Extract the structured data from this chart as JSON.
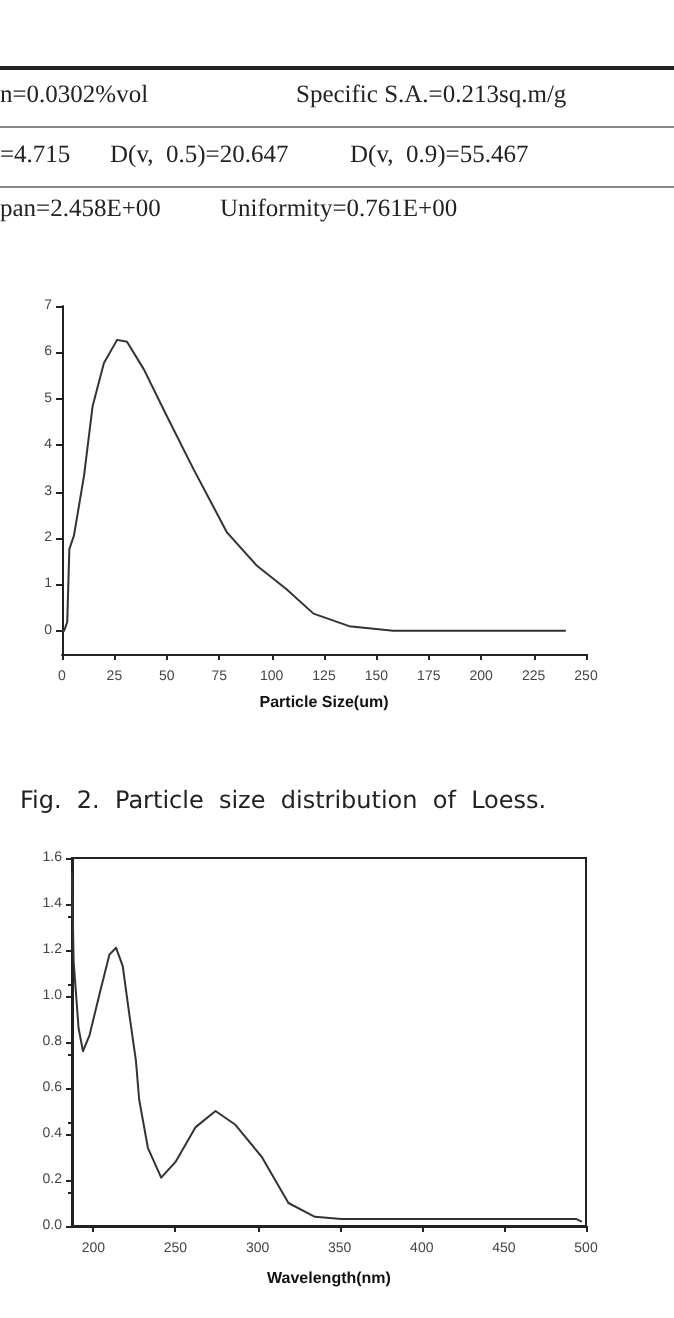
{
  "chart_data": [
    {
      "type": "line",
      "xlabel": "Particle Size(um)",
      "annotations": [
        "n=0.0302%vol",
        "Specific S.A.=0.213sq.m/g",
        "=4.715",
        "D(v,  0.5)=20.647",
        "D(v,  0.9)=55.467",
        "pan=2.458E+00",
        "Uniformity=0.761E+00",
        "Fig.  2.  Particle  size  distribution  of  Loess."
      ],
      "x": [
        0,
        1,
        2.5,
        3.5,
        5.7,
        10.5,
        14.6,
        20,
        26.3,
        31,
        39,
        50,
        62.8,
        78.7,
        93,
        107,
        120,
        137,
        158,
        240
      ],
      "series": [
        {
          "color": "#333333",
          "values": [
            0,
            0,
            0.19,
            1.76,
            2.05,
            3.34,
            4.84,
            5.77,
            6.27,
            6.23,
            5.64,
            4.63,
            3.48,
            2.12,
            1.4,
            0.9,
            0.37,
            0.1,
            0,
            0
          ]
        }
      ],
      "xlim": [
        0,
        250
      ],
      "ylim": [
        -0.5,
        7
      ],
      "xticks": [
        0,
        25,
        50,
        75,
        100,
        125,
        150,
        175,
        200,
        225,
        250
      ],
      "yticks": [
        0,
        1,
        2,
        3,
        4,
        5,
        6,
        7
      ],
      "grid": false,
      "marker": "none"
    },
    {
      "type": "line",
      "xlabel": "Wavelength(nm)",
      "x": [
        187,
        188,
        191,
        193.7,
        197.7,
        203.8,
        209.8,
        213.8,
        217.9,
        221.9,
        225.9,
        227.9,
        233.2,
        241.3,
        250.2,
        262.3,
        274.4,
        286.5,
        302.6,
        318.8,
        334.9,
        351,
        494.2,
        497
      ],
      "series": [
        {
          "color": "#333333",
          "values": [
            1.53,
            1.15,
            0.86,
            0.76,
            0.83,
            1.01,
            1.18,
            1.21,
            1.13,
            0.92,
            0.72,
            0.55,
            0.34,
            0.21,
            0.28,
            0.43,
            0.5,
            0.44,
            0.3,
            0.1,
            0.04,
            0.03,
            0.03,
            0.02
          ]
        }
      ],
      "xlim": [
        187,
        500
      ],
      "ylim": [
        0,
        1.6
      ],
      "xticks": [
        200,
        250,
        300,
        350,
        400,
        450,
        500
      ],
      "yticks": [
        {
          "value": 0,
          "label": "0.0"
        },
        0.2,
        0.4,
        0.6,
        0.8,
        {
          "value": 1,
          "label": "1.0"
        },
        1.2,
        1.4,
        1.6
      ],
      "grid": false,
      "marker": "none"
    }
  ]
}
